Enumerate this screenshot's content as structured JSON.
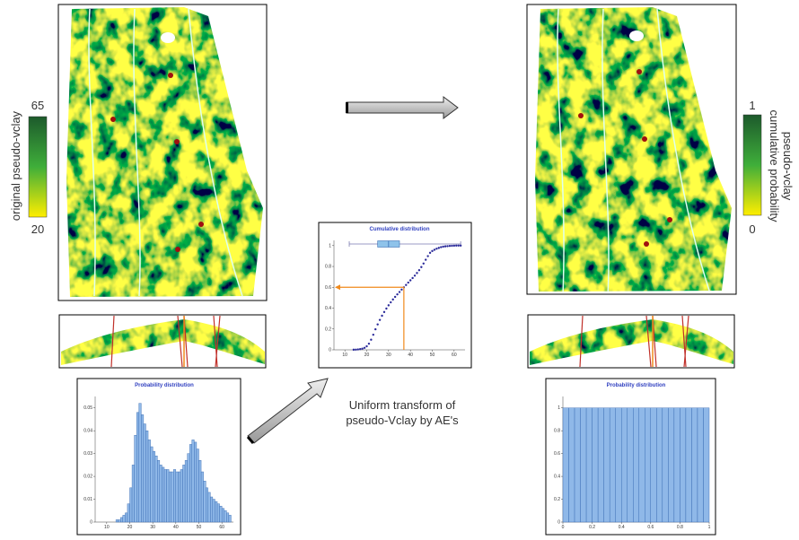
{
  "left_colorbar": {
    "max": "65",
    "min": "20",
    "label": "original pseudo-vclay"
  },
  "right_colorbar": {
    "max": "1",
    "min": "0",
    "label_lines": [
      "pseudo-vclay",
      "cumulative probability"
    ]
  },
  "caption": [
    "Uniform transform of",
    "pseudo-Vclay by AE's"
  ],
  "chart_data": [
    {
      "type": "scatter",
      "title": "Cumulative distribution",
      "color": "#2b2b9a",
      "x": [
        14,
        15,
        16,
        17,
        18,
        19,
        20,
        21,
        22,
        23,
        24,
        25,
        26,
        27,
        28,
        29,
        30,
        31,
        32,
        33,
        34,
        35,
        36,
        37,
        38,
        39,
        40,
        41,
        42,
        43,
        44,
        45,
        46,
        47,
        48,
        49,
        50,
        51,
        52,
        53,
        54,
        55,
        56,
        57,
        58,
        59,
        60,
        61,
        62,
        63
      ],
      "values": [
        0.001,
        0.002,
        0.004,
        0.007,
        0.011,
        0.019,
        0.034,
        0.059,
        0.097,
        0.145,
        0.197,
        0.244,
        0.287,
        0.327,
        0.363,
        0.396,
        0.427,
        0.456,
        0.483,
        0.508,
        0.532,
        0.555,
        0.578,
        0.6,
        0.622,
        0.645,
        0.667,
        0.689,
        0.712,
        0.737,
        0.764,
        0.794,
        0.828,
        0.864,
        0.899,
        0.931,
        0.948,
        0.96,
        0.97,
        0.978,
        0.985,
        0.99,
        0.993,
        0.995,
        0.997,
        0.998,
        0.999,
        1,
        1,
        1
      ],
      "xlim": [
        5,
        65
      ],
      "ylim": [
        0,
        1.05
      ],
      "xticks": [
        10,
        20,
        30,
        40,
        50,
        60
      ],
      "yticks": [
        0,
        0.2,
        0.4,
        0.6,
        0.8,
        1
      ],
      "boxplot": {
        "min": 12,
        "q1": 25,
        "median": 30,
        "q3": 35,
        "max": 63
      },
      "guide": {
        "x": 37,
        "y": 0.6,
        "color": "#f08a1c"
      }
    },
    {
      "type": "histogram",
      "title": "Probability distribution",
      "color": "#8fb8e8",
      "bins": [
        14,
        15,
        16,
        17,
        18,
        19,
        20,
        21,
        22,
        23,
        24,
        25,
        26,
        27,
        28,
        29,
        30,
        31,
        32,
        33,
        34,
        35,
        36,
        37,
        38,
        39,
        40,
        41,
        42,
        43,
        44,
        45,
        46,
        47,
        48,
        49,
        50,
        51,
        52,
        53,
        54,
        55,
        56,
        57,
        58,
        59,
        60,
        61,
        62,
        63,
        64
      ],
      "values": [
        0.001,
        0.001,
        0.002,
        0.003,
        0.004,
        0.008,
        0.015,
        0.025,
        0.038,
        0.048,
        0.052,
        0.047,
        0.043,
        0.04,
        0.036,
        0.033,
        0.031,
        0.029,
        0.027,
        0.025,
        0.024,
        0.023,
        0.023,
        0.022,
        0.022,
        0.023,
        0.022,
        0.022,
        0.023,
        0.025,
        0.027,
        0.03,
        0.034,
        0.036,
        0.035,
        0.032,
        0.027,
        0.022,
        0.018,
        0.015,
        0.013,
        0.011,
        0.01,
        0.009,
        0.008,
        0.007,
        0.006,
        0.005,
        0.004,
        0.003
      ],
      "xlim": [
        5,
        65
      ],
      "ylim": [
        0,
        0.055
      ],
      "xticks": [
        10,
        20,
        30,
        40,
        50,
        60
      ],
      "yticks": [
        0,
        0.01,
        0.02,
        0.03,
        0.04,
        0.05
      ]
    },
    {
      "type": "histogram",
      "title": "Probability distribution",
      "color": "#8fb8e8",
      "bins": [
        0,
        0.04,
        0.08,
        0.12,
        0.16,
        0.2,
        0.24,
        0.28,
        0.32,
        0.36,
        0.4,
        0.44,
        0.48,
        0.52,
        0.56,
        0.6,
        0.64,
        0.68,
        0.72,
        0.76,
        0.8,
        0.84,
        0.88,
        0.92,
        0.96,
        1
      ],
      "values": [
        1,
        1,
        1,
        1,
        1,
        1,
        1,
        1,
        1,
        1,
        1,
        1,
        1,
        1,
        1,
        1,
        1,
        1,
        1,
        1,
        1,
        1,
        1,
        1,
        1
      ],
      "xlim": [
        0,
        1
      ],
      "ylim": [
        0,
        1.1
      ],
      "xticks": [
        0,
        0.2,
        0.4,
        0.6,
        0.8,
        1
      ],
      "yticks": [
        0,
        0.2,
        0.4,
        0.6,
        0.8,
        1
      ]
    }
  ]
}
